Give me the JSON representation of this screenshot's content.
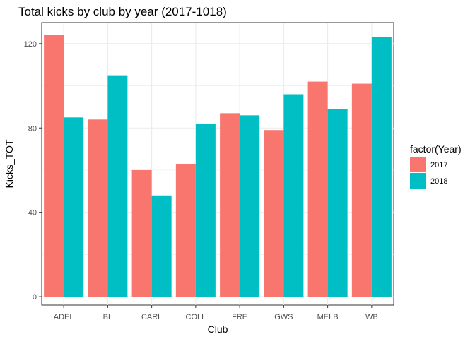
{
  "chart_data": {
    "type": "bar",
    "title": "Total kicks by club by year (2017-1018)",
    "xlabel": "Club",
    "ylabel": "Kicks_TOT",
    "categories": [
      "ADEL",
      "BL",
      "CARL",
      "COLL",
      "FRE",
      "GWS",
      "MELB",
      "WB"
    ],
    "series": [
      {
        "name": "2017",
        "color": "#F8766D",
        "values": [
          124,
          84,
          60,
          63,
          87,
          79,
          102,
          101
        ]
      },
      {
        "name": "2018",
        "color": "#00BFC4",
        "values": [
          85,
          105,
          48,
          82,
          86,
          96,
          89,
          123
        ]
      }
    ],
    "ylim": [
      -4,
      130
    ],
    "yticks": [
      0,
      40,
      80,
      120
    ],
    "ytick_labels": [
      "0",
      "40",
      "80",
      "120"
    ],
    "grid": true,
    "legend": {
      "title": "factor(Year)",
      "position": "right"
    }
  }
}
